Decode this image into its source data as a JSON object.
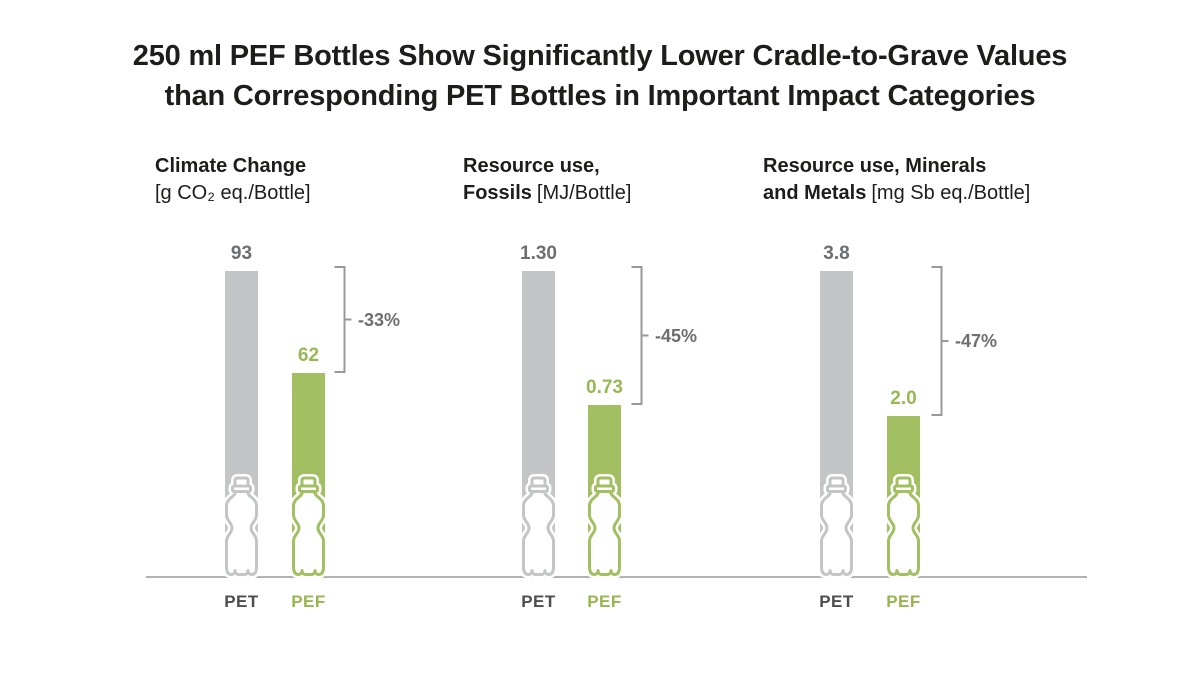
{
  "title": {
    "line1": "250 ml PEF Bottles Show Significantly Lower Cradle-to-Grave Values",
    "line2": "than Corresponding PET Bottles in Important Impact Categories"
  },
  "colors": {
    "background": "#ffffff",
    "pet_bar": "#c4c5c6",
    "pef_bar": "#a2bf62",
    "pet_value": "#6d6e71",
    "pef_value": "#98b855",
    "pet_category": "#4d4d4f",
    "pef_category": "#97b650",
    "percent_text": "#6d6e71",
    "bracket": "#97999c",
    "baseline": "#b1b3b5",
    "heading_text": "#1d1d1b"
  },
  "chart_data": {
    "type": "bar",
    "title": "250 ml PEF Bottles Show Significantly Lower Cradle-to-Grave Values than Corresponding PET Bottles in Important Impact Categories",
    "categories": [
      "PET",
      "PEF"
    ],
    "grid": false,
    "legend_position": "none",
    "panels": [
      {
        "title_line1": "Climate Change",
        "title_line2_bold": "",
        "unit": "[g CO₂ eq./Bottle]",
        "series": [
          {
            "name": "PET",
            "value": 93,
            "display": "93"
          },
          {
            "name": "PEF",
            "value": 62,
            "display": "62"
          }
        ],
        "reduction_label": "-33%"
      },
      {
        "title_line1": "Resource use,",
        "title_line2_bold": "Fossils",
        "unit": "[MJ/Bottle]",
        "series": [
          {
            "name": "PET",
            "value": 1.3,
            "display": "1.30"
          },
          {
            "name": "PEF",
            "value": 0.73,
            "display": "0.73"
          }
        ],
        "reduction_label": "-45%"
      },
      {
        "title_line1": "Resource use, Minerals",
        "title_line2_bold": "and Metals",
        "unit": "[mg Sb eq./Bottle]",
        "series": [
          {
            "name": "PET",
            "value": 3.8,
            "display": "3.8"
          },
          {
            "name": "PEF",
            "value": 2.0,
            "display": "2.0"
          }
        ],
        "reduction_label": "-47%"
      }
    ]
  }
}
